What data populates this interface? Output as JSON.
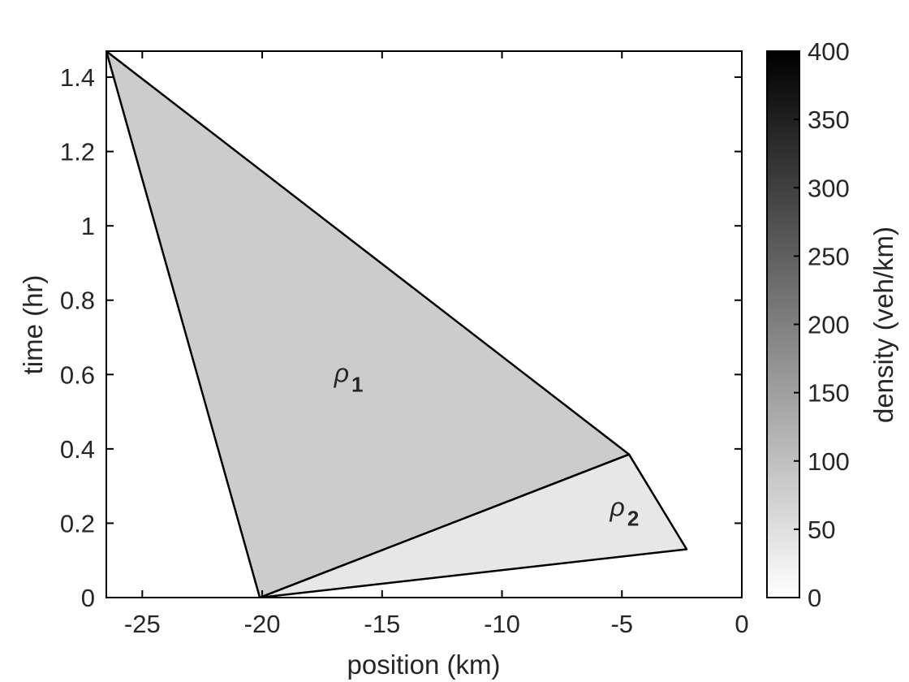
{
  "chart_data": {
    "type": "region",
    "xlabel": "position (km)",
    "ylabel": "time (hr)",
    "xlim": [
      -26.5,
      0
    ],
    "ylim": [
      0,
      1.47
    ],
    "xticks": [
      -25,
      -20,
      -15,
      -10,
      -5,
      0
    ],
    "yticks": [
      0,
      0.2,
      0.4,
      0.6,
      0.8,
      1,
      1.2,
      1.4
    ],
    "xtick_labels": [
      "-25",
      "-20",
      "-15",
      "-10",
      "-5",
      "0"
    ],
    "ytick_labels": [
      "0",
      "0.2",
      "0.4",
      "0.6",
      "0.8",
      "1",
      "1.2",
      "1.4"
    ],
    "regions": [
      {
        "symbol": "ρ",
        "subscript": "1",
        "density": 80,
        "label_at": [
          -17.0,
          0.58
        ],
        "vertices": [
          [
            -26.5,
            1.47
          ],
          [
            -20.1,
            0.0
          ],
          [
            -4.7,
            0.385
          ]
        ]
      },
      {
        "symbol": "ρ",
        "subscript": "2",
        "density": 38,
        "label_at": [
          -5.5,
          0.22
        ],
        "vertices": [
          [
            -20.1,
            0.0
          ],
          [
            -4.7,
            0.385
          ],
          [
            -2.3,
            0.13
          ]
        ]
      }
    ],
    "colorbar": {
      "label": "density (veh/km)",
      "range": [
        0,
        400
      ],
      "ticks": [
        0,
        50,
        100,
        150,
        200,
        250,
        300,
        350,
        400
      ],
      "tick_labels": [
        "0",
        "50",
        "100",
        "150",
        "200",
        "250",
        "300",
        "350",
        "400"
      ],
      "colormap": "white-to-black"
    }
  }
}
